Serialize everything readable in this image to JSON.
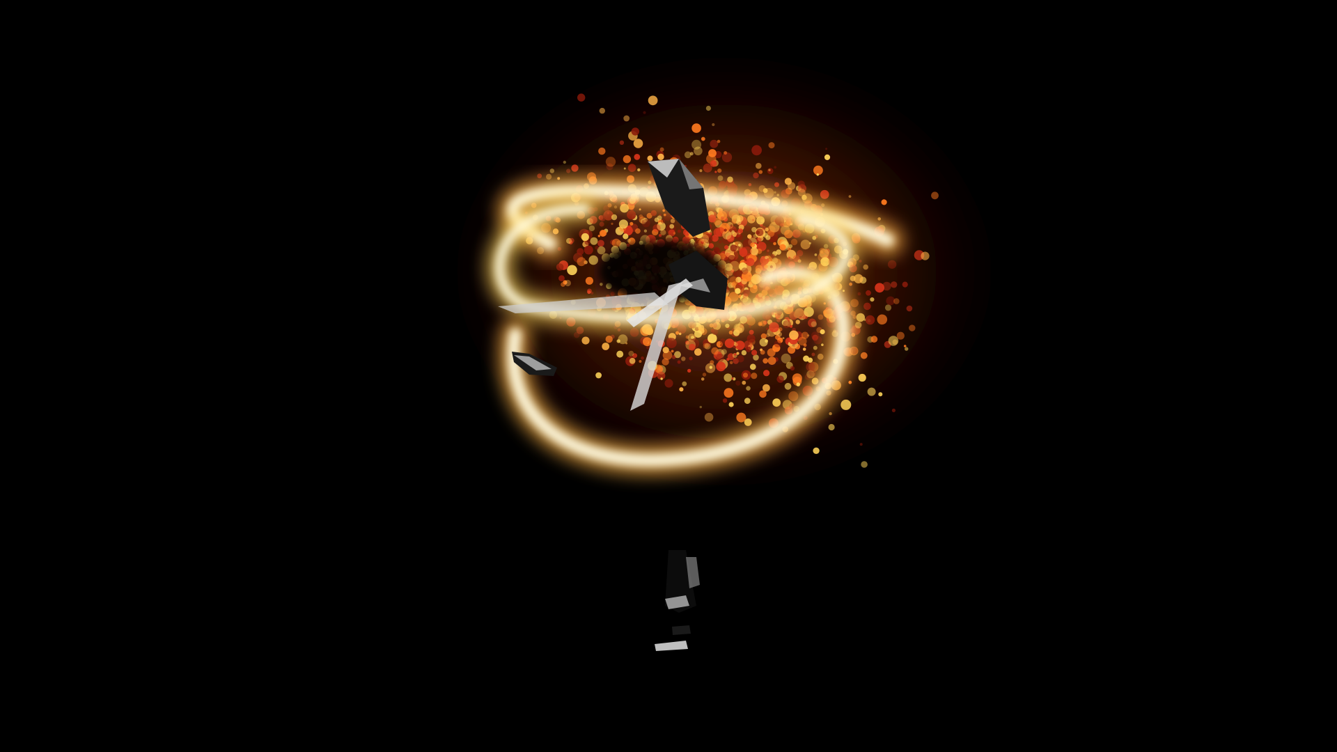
{
  "scene": {
    "type": "3d-particle-effect",
    "effect": "fire-swirl",
    "background_color": "#000000",
    "palette": {
      "core": "#fffbe0",
      "glow": "#ffd45a",
      "ember_bright": "#ffb347",
      "ember": "#ff7a1f",
      "ember_dark": "#d8341a",
      "ember_deep": "#8a1a0a",
      "figure_light": "#d9d9d9",
      "figure_mid": "#8c8c8c",
      "figure_dark": "#1a1a1a"
    },
    "objects": [
      {
        "name": "ember-particle-cloud",
        "kind": "particles"
      },
      {
        "name": "fire-ring-outer",
        "kind": "glowing-ring"
      },
      {
        "name": "fire-ring-inner",
        "kind": "glowing-ring"
      },
      {
        "name": "spinning-figure",
        "kind": "low-poly-character"
      }
    ]
  }
}
